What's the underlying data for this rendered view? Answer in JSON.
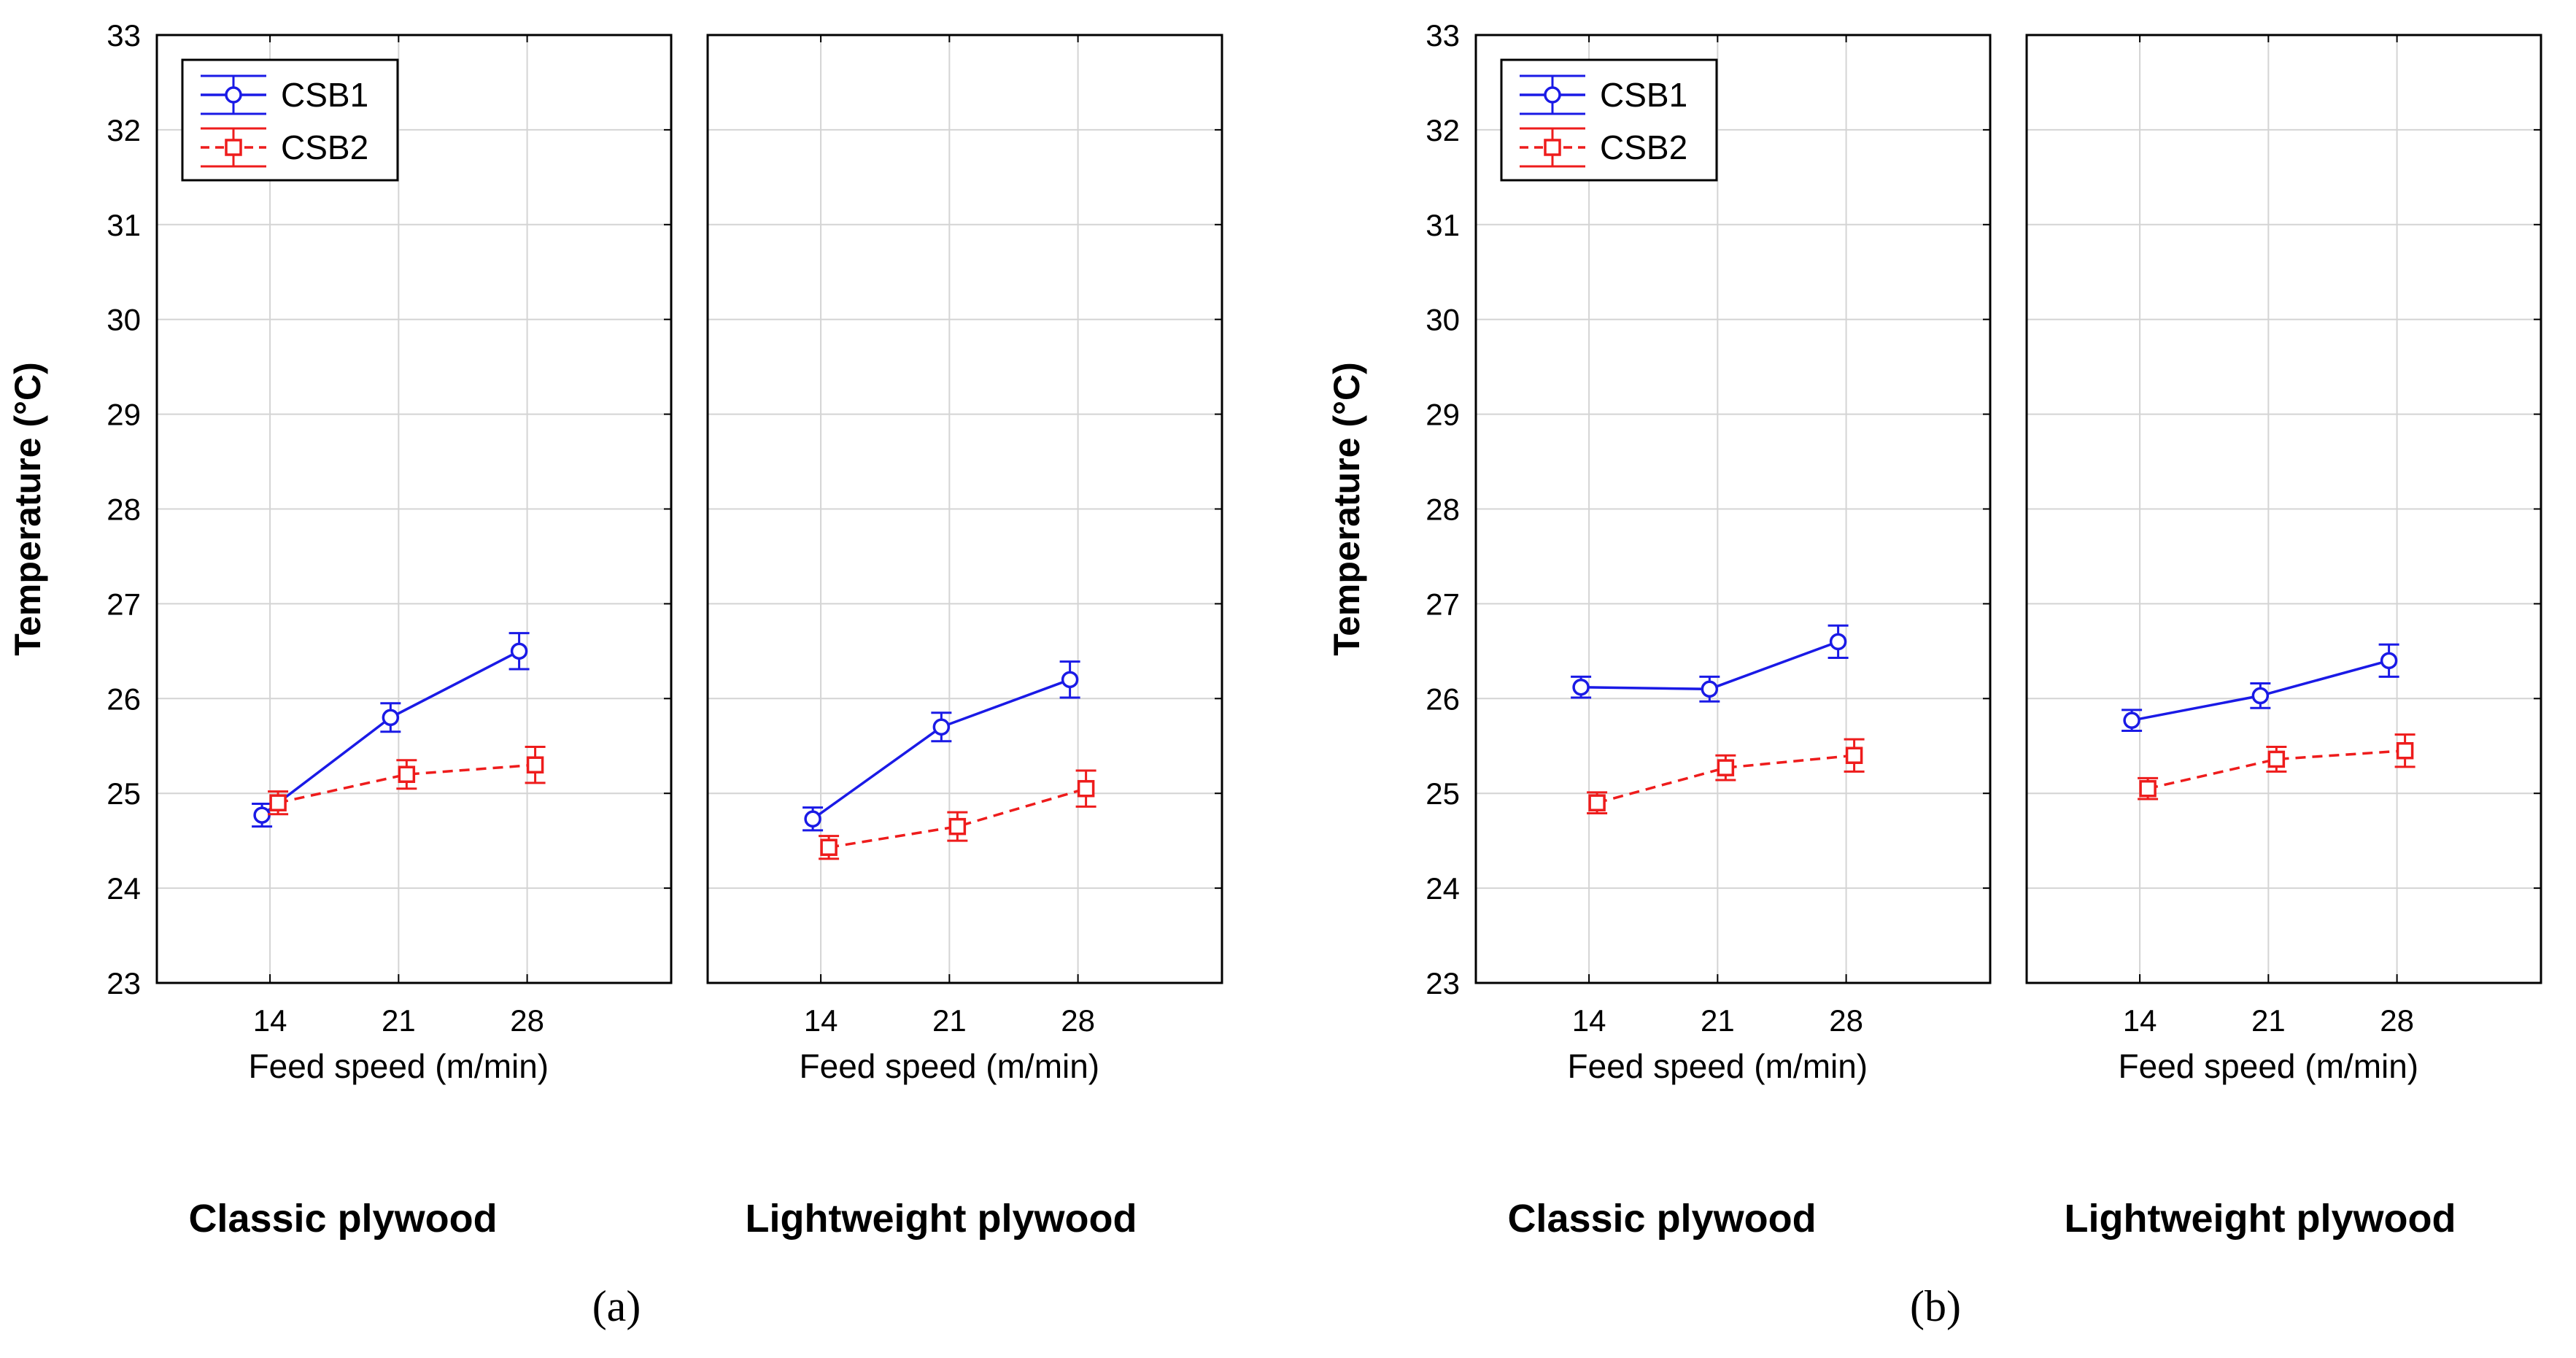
{
  "colors": {
    "csb1": "#1a1ae6",
    "csb2": "#ee1c1c",
    "grid": "#d4d4d4",
    "axis": "#000000"
  },
  "chart_data": [
    {
      "type": "line",
      "panel_label": "(a)",
      "ylabel": "Temperature (°C)",
      "ylim": [
        23,
        33
      ],
      "yticks": [
        "23",
        "24",
        "25",
        "26",
        "27",
        "28",
        "29",
        "30",
        "31",
        "32",
        "33"
      ],
      "legend": [
        "CSB1",
        "CSB2"
      ],
      "legend_position": "top-left",
      "subplots": [
        {
          "title": "Classic plywood",
          "xlabel": "Feed speed (m/min)",
          "categories": [
            "14",
            "21",
            "28"
          ],
          "series": [
            {
              "name": "CSB1",
              "values": [
                24.77,
                25.8,
                26.5
              ],
              "errors": [
                0.12,
                0.15,
                0.19
              ]
            },
            {
              "name": "CSB2",
              "values": [
                24.9,
                25.2,
                25.3
              ],
              "errors": [
                0.12,
                0.15,
                0.19
              ]
            }
          ]
        },
        {
          "title": "Lightweight plywood",
          "xlabel": "Feed speed (m/min)",
          "categories": [
            "14",
            "21",
            "28"
          ],
          "series": [
            {
              "name": "CSB1",
              "values": [
                24.73,
                25.7,
                26.2
              ],
              "errors": [
                0.12,
                0.15,
                0.19
              ]
            },
            {
              "name": "CSB2",
              "values": [
                24.43,
                24.65,
                25.05
              ],
              "errors": [
                0.12,
                0.15,
                0.19
              ]
            }
          ]
        }
      ]
    },
    {
      "type": "line",
      "panel_label": "(b)",
      "ylabel": "Temperature (°C)",
      "ylim": [
        23,
        33
      ],
      "yticks": [
        "23",
        "24",
        "25",
        "26",
        "27",
        "28",
        "29",
        "30",
        "31",
        "32",
        "33"
      ],
      "legend": [
        "CSB1",
        "CSB2"
      ],
      "legend_position": "top-left",
      "subplots": [
        {
          "title": "Classic plywood",
          "xlabel": "Feed speed (m/min)",
          "categories": [
            "14",
            "21",
            "28"
          ],
          "series": [
            {
              "name": "CSB1",
              "values": [
                26.12,
                26.1,
                26.6
              ],
              "errors": [
                0.11,
                0.13,
                0.17
              ]
            },
            {
              "name": "CSB2",
              "values": [
                24.9,
                25.27,
                25.4
              ],
              "errors": [
                0.11,
                0.13,
                0.17
              ]
            }
          ]
        },
        {
          "title": "Lightweight plywood",
          "xlabel": "Feed speed (m/min)",
          "categories": [
            "14",
            "21",
            "28"
          ],
          "series": [
            {
              "name": "CSB1",
              "values": [
                25.77,
                26.03,
                26.4
              ],
              "errors": [
                0.11,
                0.13,
                0.17
              ]
            },
            {
              "name": "CSB2",
              "values": [
                25.05,
                25.36,
                25.45
              ],
              "errors": [
                0.11,
                0.13,
                0.17
              ]
            }
          ]
        }
      ]
    }
  ]
}
